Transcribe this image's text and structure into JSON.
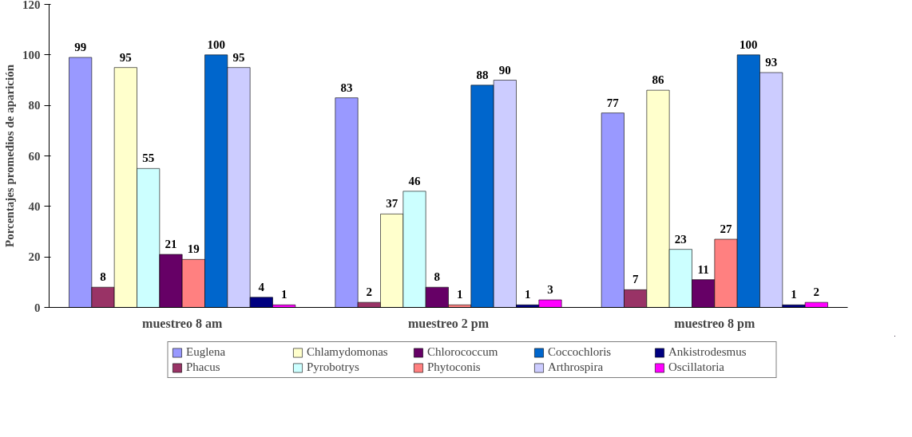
{
  "chart_data": {
    "type": "bar",
    "ylabel": "Porcentajes promedios de aparición",
    "categories": [
      "muestreo 8 am",
      "muestreo 2 pm",
      "muestreo 8 pm"
    ],
    "series": [
      {
        "name": "Euglena",
        "color": "#9999ff",
        "values": [
          99,
          83,
          77
        ]
      },
      {
        "name": "Phacus",
        "color": "#993366",
        "values": [
          8,
          2,
          7
        ]
      },
      {
        "name": "Chlamydomonas",
        "color": "#ffffcc",
        "values": [
          95,
          37,
          86
        ]
      },
      {
        "name": "Pyrobotrys",
        "color": "#ccffff",
        "values": [
          55,
          46,
          23
        ]
      },
      {
        "name": "Chlorococcum",
        "color": "#660066",
        "values": [
          21,
          8,
          11
        ]
      },
      {
        "name": "Phytoconis",
        "color": "#ff8080",
        "values": [
          19,
          1,
          27
        ]
      },
      {
        "name": "Coccochloris",
        "color": "#0066cc",
        "values": [
          100,
          88,
          100
        ]
      },
      {
        "name": "Arthrospira",
        "color": "#ccccff",
        "values": [
          95,
          90,
          93
        ]
      },
      {
        "name": "Ankistrodesmus",
        "color": "#000080",
        "values": [
          4,
          1,
          1
        ]
      },
      {
        "name": "Oscillatoria",
        "color": "#ff00ff",
        "values": [
          1,
          3,
          2
        ]
      }
    ],
    "ylim": [
      0,
      120
    ],
    "yticks": [
      0,
      20,
      40,
      60,
      80,
      100,
      120
    ],
    "grid": false,
    "data_labels": true,
    "legend": "bottom"
  }
}
